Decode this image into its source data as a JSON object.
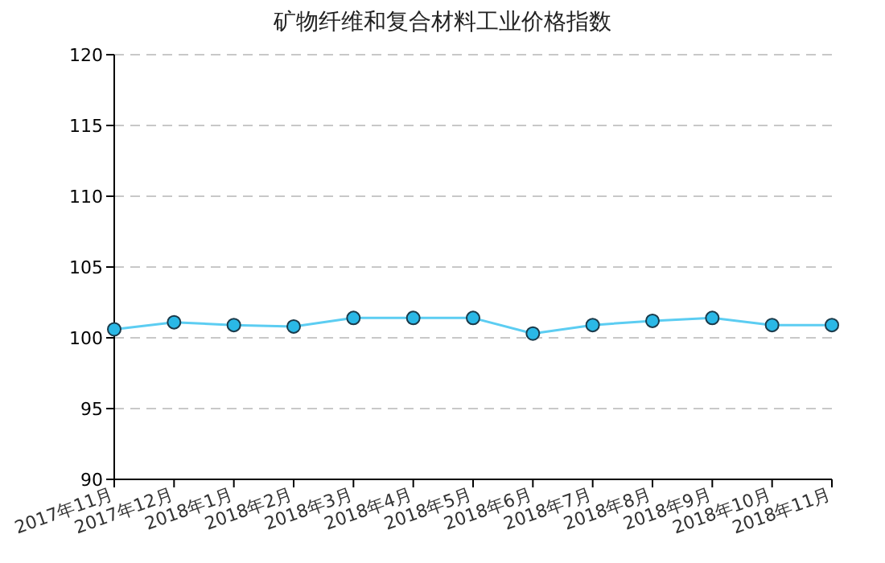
{
  "chart_data": {
    "type": "line",
    "title": "矿物纤维和复合材料工业价格指数",
    "categories": [
      "2017年11月",
      "2017年12月",
      "2018年1月",
      "2018年2月",
      "2018年3月",
      "2018年4月",
      "2018年5月",
      "2018年6月",
      "2018年7月",
      "2018年8月",
      "2018年9月",
      "2018年10月",
      "2018年11月"
    ],
    "series": [
      {
        "color": "#5ccdf2",
        "values": [
          100.6,
          101.1,
          100.9,
          100.8,
          101.4,
          101.4,
          101.4,
          100.3,
          100.9,
          101.2,
          101.4,
          100.9,
          100.9
        ]
      }
    ],
    "ylim": [
      90,
      120
    ],
    "yticks": [
      90,
      95,
      100,
      105,
      110,
      115,
      120
    ],
    "grid": "y",
    "marker": "circle",
    "line_style": "solid"
  }
}
